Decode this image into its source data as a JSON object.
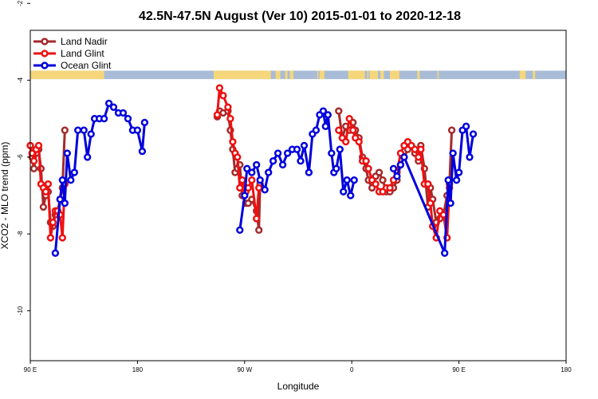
{
  "chart_data": {
    "type": "line",
    "title": "42.5N-47.5N August (Ver 10)   2015-01-01 to 2020-12-18",
    "xlabel": "Longitude",
    "ylabel": "XCO2 - MLO trend (ppm)",
    "xlim": [
      90,
      540
    ],
    "ylim": [
      -11.3,
      -2.7
    ],
    "x_ticks": [
      {
        "value": 90,
        "label": "90 E"
      },
      {
        "value": 180,
        "label": "180"
      },
      {
        "value": 270,
        "label": "90 W"
      },
      {
        "value": 360,
        "label": "0"
      },
      {
        "value": 450,
        "label": "90 E"
      },
      {
        "value": 540,
        "label": "180"
      }
    ],
    "y_ticks": [
      {
        "value": -2,
        "label": "-2"
      },
      {
        "value": -4,
        "label": "-4"
      },
      {
        "value": -6,
        "label": "-6"
      },
      {
        "value": -8,
        "label": "-8"
      },
      {
        "value": -10,
        "label": "-10"
      }
    ],
    "legend_position": "top-left",
    "grid": false,
    "land_ocean_band": {
      "y_range": [
        -3.97,
        -3.75
      ],
      "land_color": "#f5d67a",
      "ocean_color": "#a8bcd8",
      "land_intervals": [
        [
          90,
          146
        ],
        [
          145,
          148
        ],
        [
          147,
          150
        ],
        [
          147,
          152
        ],
        [
          147,
          148
        ],
        [
          150,
          152
        ],
        [
          244,
          292
        ],
        [
          296,
          300
        ],
        [
          304,
          306
        ],
        [
          308,
          311
        ],
        [
          331,
          332
        ],
        [
          333,
          337
        ],
        [
          357,
          365
        ],
        [
          362,
          367
        ],
        [
          366,
          371
        ],
        [
          373,
          374
        ],
        [
          376,
          378
        ],
        [
          375,
          377
        ],
        [
          377,
          380
        ],
        [
          380,
          382
        ],
        [
          384,
          387
        ],
        [
          392,
          400
        ],
        [
          415,
          417
        ],
        [
          432,
          433
        ],
        [
          501,
          506
        ],
        [
          512,
          514
        ]
      ]
    },
    "series": [
      {
        "name": "Land Nadir",
        "color": "#a52a2a",
        "segments": [
          [
            [
              90,
              -5.7
            ],
            [
              91.5,
              -6.0
            ],
            [
              93,
              -6.3
            ],
            [
              95,
              -5.9
            ],
            [
              97,
              -5.8
            ],
            [
              99,
              -6.3
            ],
            [
              101,
              -7.3
            ],
            [
              103,
              -7.0
            ],
            [
              105,
              -6.9
            ],
            [
              107,
              -7.7
            ],
            [
              109,
              -7.8
            ],
            [
              111,
              -7.5
            ],
            [
              113,
              -7.4
            ],
            [
              115,
              -7.1
            ],
            [
              117,
              -6.8
            ],
            [
              119,
              -5.3
            ]
          ],
          [
            [
              247,
              -4.95
            ],
            [
              249,
              -4.8
            ],
            [
              252,
              -4.85
            ],
            [
              256,
              -4.8
            ],
            [
              258,
              -5.3
            ],
            [
              260,
              -5.8
            ],
            [
              262,
              -6.4
            ],
            [
              264,
              -6.3
            ],
            [
              266,
              -6.2
            ],
            [
              268,
              -7.0
            ],
            [
              271,
              -7.2
            ],
            [
              273,
              -7.2
            ],
            [
              276,
              -7.1
            ],
            [
              280,
              -7.4
            ],
            [
              282,
              -7.9
            ],
            [
              283,
              -6.7
            ]
          ],
          [
            [
              349,
              -4.8
            ],
            [
              352,
              -5.5
            ],
            [
              355,
              -5.2
            ],
            [
              358,
              -5.3
            ],
            [
              361,
              -5.1
            ],
            [
              363,
              -5.3
            ],
            [
              366,
              -5.5
            ],
            [
              369,
              -6.0
            ],
            [
              372,
              -6.3
            ],
            [
              374,
              -6.6
            ],
            [
              377,
              -6.8
            ],
            [
              380,
              -6.5
            ],
            [
              383,
              -6.4
            ],
            [
              386,
              -6.6
            ],
            [
              389,
              -6.9
            ],
            [
              392,
              -6.9
            ],
            [
              395,
              -6.8
            ],
            [
              398,
              -6.6
            ],
            [
              401,
              -6.2
            ],
            [
              404,
              -6.0
            ],
            [
              407,
              -5.8
            ],
            [
              410,
              -5.7
            ],
            [
              413,
              -5.9
            ],
            [
              416,
              -6.1
            ],
            [
              418,
              -5.7
            ],
            [
              421,
              -6.3
            ],
            [
              424,
              -7.3
            ],
            [
              426,
              -6.8
            ],
            [
              428,
              -7.1
            ],
            [
              431,
              -7.7
            ],
            [
              434,
              -7.6
            ],
            [
              437,
              -7.5
            ],
            [
              440,
              -7.0
            ],
            [
              442,
              -6.7
            ],
            [
              444,
              -5.3
            ]
          ]
        ]
      },
      {
        "name": "Land Glint",
        "color": "#ee1111",
        "segments": [
          [
            [
              90,
              -5.7
            ],
            [
              91.5,
              -5.9
            ],
            [
              93,
              -6.1
            ],
            [
              95,
              -5.8
            ],
            [
              97,
              -5.7
            ],
            [
              99,
              -6.7
            ],
            [
              101,
              -6.8
            ],
            [
              103,
              -6.9
            ],
            [
              105,
              -6.7
            ],
            [
              107,
              -8.1
            ],
            [
              109,
              -7.7
            ],
            [
              111,
              -7.4
            ],
            [
              113,
              -7.4
            ],
            [
              115,
              -7.5
            ],
            [
              117,
              -8.1
            ],
            [
              119,
              -6.7
            ]
          ],
          [
            [
              247,
              -4.9
            ],
            [
              249,
              -4.2
            ],
            [
              252,
              -4.4
            ],
            [
              256,
              -4.7
            ],
            [
              258,
              -5.0
            ],
            [
              260,
              -5.6
            ],
            [
              262,
              -5.9
            ],
            [
              264,
              -6.0
            ],
            [
              266,
              -6.8
            ],
            [
              268,
              -6.6
            ],
            [
              271,
              -6.9
            ],
            [
              273,
              -6.8
            ],
            [
              276,
              -6.6
            ],
            [
              280,
              -7.6
            ],
            [
              282,
              -6.8
            ]
          ],
          [
            [
              349,
              -5.3
            ],
            [
              352,
              -5.5
            ],
            [
              355,
              -5.6
            ],
            [
              358,
              -5.0
            ],
            [
              361,
              -5.3
            ],
            [
              363,
              -5.5
            ],
            [
              366,
              -5.6
            ],
            [
              369,
              -6.1
            ],
            [
              372,
              -6.1
            ],
            [
              374,
              -6.3
            ],
            [
              377,
              -6.6
            ],
            [
              380,
              -6.7
            ],
            [
              383,
              -6.9
            ],
            [
              386,
              -6.9
            ],
            [
              389,
              -6.8
            ],
            [
              392,
              -6.8
            ],
            [
              395,
              -6.6
            ],
            [
              398,
              -6.4
            ],
            [
              401,
              -5.9
            ],
            [
              404,
              -5.7
            ],
            [
              407,
              -5.6
            ],
            [
              410,
              -5.7
            ],
            [
              413,
              -5.8
            ],
            [
              416,
              -6.0
            ],
            [
              418,
              -5.8
            ],
            [
              421,
              -6.7
            ],
            [
              424,
              -6.7
            ],
            [
              426,
              -7.2
            ],
            [
              428,
              -7.8
            ],
            [
              431,
              -8.1
            ],
            [
              434,
              -7.4
            ],
            [
              437,
              -7.5
            ],
            [
              440,
              -8.1
            ],
            [
              442,
              -6.8
            ]
          ]
        ]
      },
      {
        "name": "Ocean Glint",
        "color": "#0000dd",
        "segments": [
          [
            [
              111,
              -8.5
            ],
            [
              115,
              -7.1
            ],
            [
              117,
              -6.6
            ],
            [
              119,
              -7.2
            ],
            [
              121,
              -5.9
            ],
            [
              124,
              -6.6
            ],
            [
              127,
              -6.4
            ],
            [
              130,
              -5.3
            ],
            [
              135,
              -5.3
            ],
            [
              138,
              -6.0
            ],
            [
              141,
              -5.4
            ],
            [
              144,
              -5.0
            ],
            [
              148,
              -5.0
            ],
            [
              152,
              -5.0
            ],
            [
              156,
              -4.6
            ],
            [
              160,
              -4.7
            ],
            [
              164,
              -4.85
            ],
            [
              168,
              -4.85
            ],
            [
              172,
              -5.0
            ],
            [
              176,
              -5.3
            ],
            [
              180,
              -5.3
            ],
            [
              184,
              -5.85
            ],
            [
              186,
              -5.1
            ]
          ],
          [
            [
              266,
              -7.9
            ],
            [
              270,
              -7.0
            ],
            [
              272,
              -6.3
            ],
            [
              276,
              -6.4
            ],
            [
              280,
              -6.2
            ],
            [
              283,
              -6.6
            ],
            [
              287,
              -6.85
            ],
            [
              290,
              -6.4
            ],
            [
              294,
              -6.1
            ],
            [
              298,
              -5.9
            ],
            [
              302,
              -6.2
            ],
            [
              306,
              -5.9
            ],
            [
              310,
              -5.8
            ],
            [
              314,
              -5.8
            ],
            [
              317,
              -6.1
            ],
            [
              320,
              -5.7
            ],
            [
              324,
              -6.4
            ],
            [
              327,
              -5.4
            ],
            [
              330,
              -5.3
            ],
            [
              333,
              -4.9
            ],
            [
              336,
              -4.8
            ],
            [
              338,
              -5.2
            ],
            [
              340,
              -4.9
            ],
            [
              343,
              -5.9
            ],
            [
              345,
              -6.4
            ],
            [
              347,
              -6.3
            ],
            [
              350,
              -5.8
            ],
            [
              353,
              -6.9
            ],
            [
              356,
              -6.6
            ],
            [
              359,
              -7.0
            ],
            [
              362,
              -6.6
            ]
          ],
          [
            [
              395,
              -6.3
            ],
            [
              398,
              -6.5
            ],
            [
              401,
              -6.2
            ],
            [
              404,
              -6.0
            ],
            [
              438,
              -8.5
            ],
            [
              441,
              -6.6
            ],
            [
              443,
              -7.2
            ],
            [
              445,
              -5.9
            ],
            [
              448,
              -6.6
            ],
            [
              450,
              -6.4
            ],
            [
              453,
              -5.3
            ],
            [
              456,
              -5.2
            ],
            [
              459,
              -6.0
            ],
            [
              462,
              -5.4
            ]
          ]
        ]
      }
    ]
  }
}
